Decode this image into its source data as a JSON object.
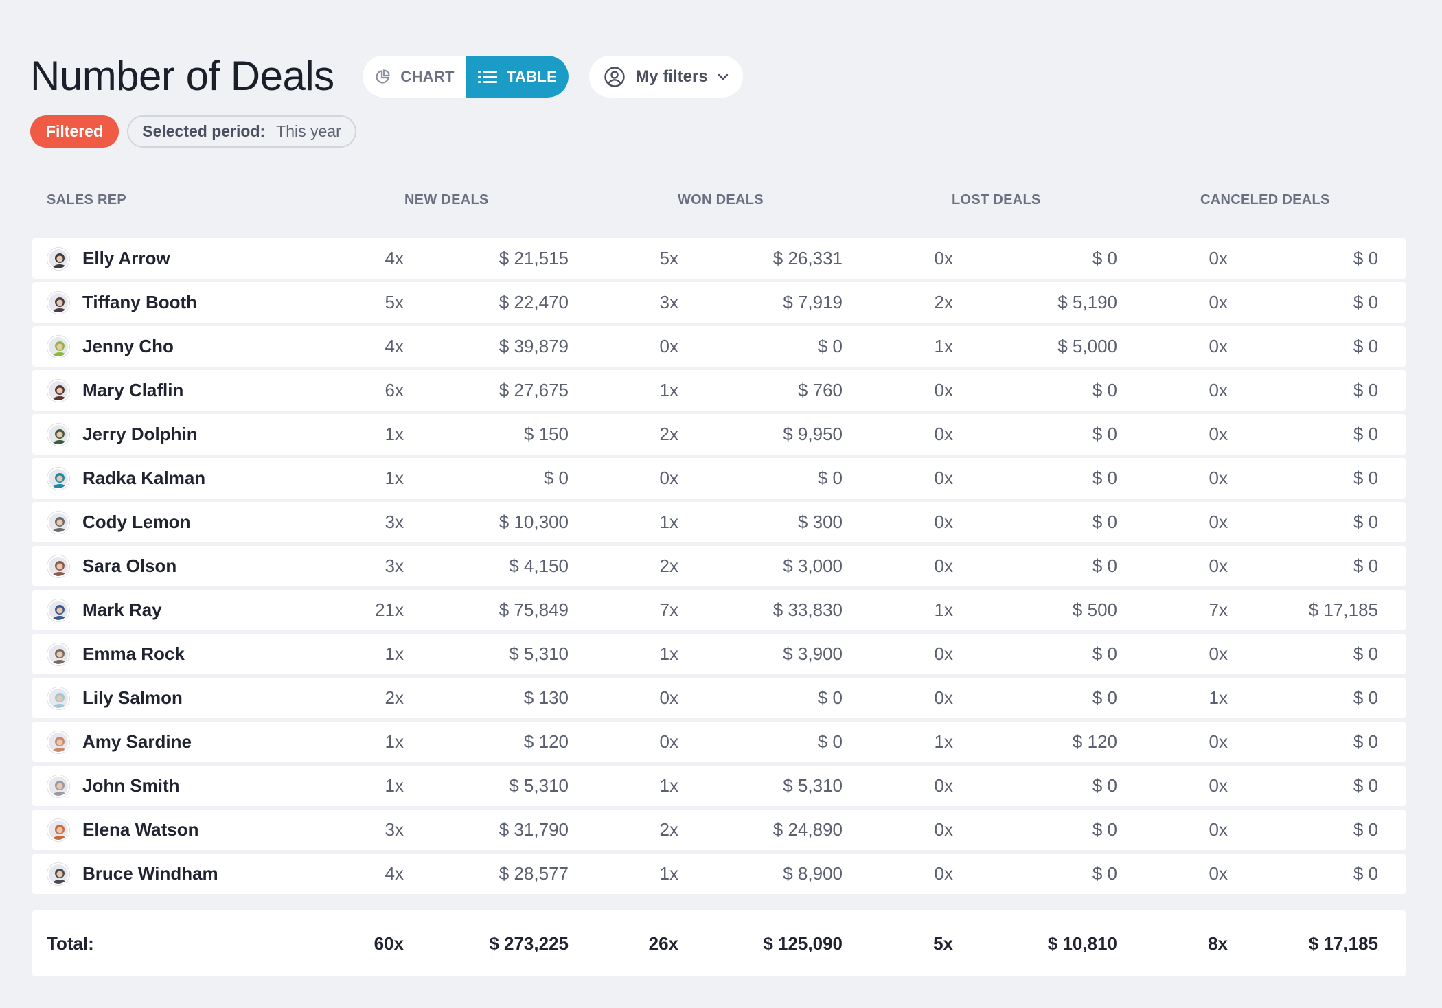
{
  "header": {
    "title": "Number of Deals",
    "view_toggle": {
      "chart_label": "CHART",
      "table_label": "TABLE",
      "active": "TABLE"
    },
    "filters_label": "My filters",
    "filtered_badge": "Filtered",
    "period": {
      "label": "Selected period:",
      "value": "This year"
    }
  },
  "colors": {
    "accent": "#1a9cc7",
    "filtered": "#ef5b45",
    "background": "#f0f1f5"
  },
  "table": {
    "columns": {
      "rep": "SALES REP",
      "new": "NEW DEALS",
      "won": "WON DEALS",
      "lost": "LOST DEALS",
      "canceled": "CANCELED DEALS"
    },
    "rows": [
      {
        "name": "Elly Arrow",
        "new_count": "4x",
        "new_amount": "$ 21,515",
        "won_count": "5x",
        "won_amount": "$ 26,331",
        "lost_count": "0x",
        "lost_amount": "$ 0",
        "canceled_count": "0x",
        "canceled_amount": "$ 0"
      },
      {
        "name": "Tiffany Booth",
        "new_count": "5x",
        "new_amount": "$ 22,470",
        "won_count": "3x",
        "won_amount": "$ 7,919",
        "lost_count": "2x",
        "lost_amount": "$ 5,190",
        "canceled_count": "0x",
        "canceled_amount": "$ 0"
      },
      {
        "name": "Jenny Cho",
        "new_count": "4x",
        "new_amount": "$ 39,879",
        "won_count": "0x",
        "won_amount": "$ 0",
        "lost_count": "1x",
        "lost_amount": "$ 5,000",
        "canceled_count": "0x",
        "canceled_amount": "$ 0"
      },
      {
        "name": "Mary Claflin",
        "new_count": "6x",
        "new_amount": "$ 27,675",
        "won_count": "1x",
        "won_amount": "$ 760",
        "lost_count": "0x",
        "lost_amount": "$ 0",
        "canceled_count": "0x",
        "canceled_amount": "$ 0"
      },
      {
        "name": "Jerry Dolphin",
        "new_count": "1x",
        "new_amount": "$ 150",
        "won_count": "2x",
        "won_amount": "$ 9,950",
        "lost_count": "0x",
        "lost_amount": "$ 0",
        "canceled_count": "0x",
        "canceled_amount": "$ 0"
      },
      {
        "name": "Radka Kalman",
        "new_count": "1x",
        "new_amount": "$ 0",
        "won_count": "0x",
        "won_amount": "$ 0",
        "lost_count": "0x",
        "lost_amount": "$ 0",
        "canceled_count": "0x",
        "canceled_amount": "$ 0"
      },
      {
        "name": "Cody Lemon",
        "new_count": "3x",
        "new_amount": "$ 10,300",
        "won_count": "1x",
        "won_amount": "$ 300",
        "lost_count": "0x",
        "lost_amount": "$ 0",
        "canceled_count": "0x",
        "canceled_amount": "$ 0"
      },
      {
        "name": "Sara Olson",
        "new_count": "3x",
        "new_amount": "$ 4,150",
        "won_count": "2x",
        "won_amount": "$ 3,000",
        "lost_count": "0x",
        "lost_amount": "$ 0",
        "canceled_count": "0x",
        "canceled_amount": "$ 0"
      },
      {
        "name": "Mark Ray",
        "new_count": "21x",
        "new_amount": "$ 75,849",
        "won_count": "7x",
        "won_amount": "$ 33,830",
        "lost_count": "1x",
        "lost_amount": "$ 500",
        "canceled_count": "7x",
        "canceled_amount": "$ 17,185"
      },
      {
        "name": "Emma Rock",
        "new_count": "1x",
        "new_amount": "$ 5,310",
        "won_count": "1x",
        "won_amount": "$ 3,900",
        "lost_count": "0x",
        "lost_amount": "$ 0",
        "canceled_count": "0x",
        "canceled_amount": "$ 0"
      },
      {
        "name": "Lily Salmon",
        "new_count": "2x",
        "new_amount": "$ 130",
        "won_count": "0x",
        "won_amount": "$ 0",
        "lost_count": "0x",
        "lost_amount": "$ 0",
        "canceled_count": "1x",
        "canceled_amount": "$ 0"
      },
      {
        "name": "Amy Sardine",
        "new_count": "1x",
        "new_amount": "$ 120",
        "won_count": "0x",
        "won_amount": "$ 0",
        "lost_count": "1x",
        "lost_amount": "$ 120",
        "canceled_count": "0x",
        "canceled_amount": "$ 0"
      },
      {
        "name": "John Smith",
        "new_count": "1x",
        "new_amount": "$ 5,310",
        "won_count": "1x",
        "won_amount": "$ 5,310",
        "lost_count": "0x",
        "lost_amount": "$ 0",
        "canceled_count": "0x",
        "canceled_amount": "$ 0"
      },
      {
        "name": "Elena Watson",
        "new_count": "3x",
        "new_amount": "$ 31,790",
        "won_count": "2x",
        "won_amount": "$ 24,890",
        "lost_count": "0x",
        "lost_amount": "$ 0",
        "canceled_count": "0x",
        "canceled_amount": "$ 0"
      },
      {
        "name": "Bruce Windham",
        "new_count": "4x",
        "new_amount": "$ 28,577",
        "won_count": "1x",
        "won_amount": "$ 8,900",
        "lost_count": "0x",
        "lost_amount": "$ 0",
        "canceled_count": "0x",
        "canceled_amount": "$ 0"
      }
    ],
    "avatar_colors": [
      "#3b3b3b",
      "#4a3b44",
      "#8fb83a",
      "#5a3630",
      "#3f5a3a",
      "#1c8aa8",
      "#6a6a6a",
      "#8a5a4c",
      "#3a5a8c",
      "#7a6a62",
      "#9dc9d6",
      "#c68a6a",
      "#9a9aa6",
      "#c86a3a",
      "#4a4a52"
    ],
    "total": {
      "label": "Total:",
      "new_count": "60x",
      "new_amount": "$ 273,225",
      "won_count": "26x",
      "won_amount": "$ 125,090",
      "lost_count": "5x",
      "lost_amount": "$ 10,810",
      "canceled_count": "8x",
      "canceled_amount": "$ 17,185"
    }
  }
}
